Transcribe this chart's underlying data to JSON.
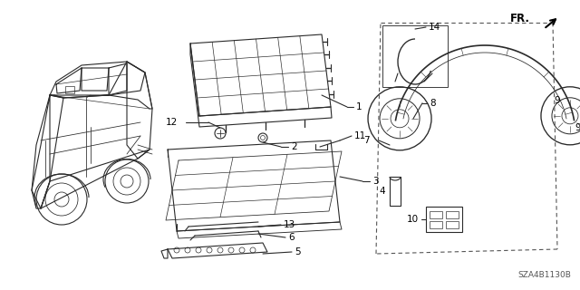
{
  "bg_color": "#ffffff",
  "diagram_code": "SZA4B1130B",
  "line_color": "#2a2a2a",
  "lw": 0.8,
  "label_fontsize": 7.5,
  "diagram_fontsize": 6.5,
  "figsize": [
    6.4,
    3.2
  ],
  "dpi": 100
}
